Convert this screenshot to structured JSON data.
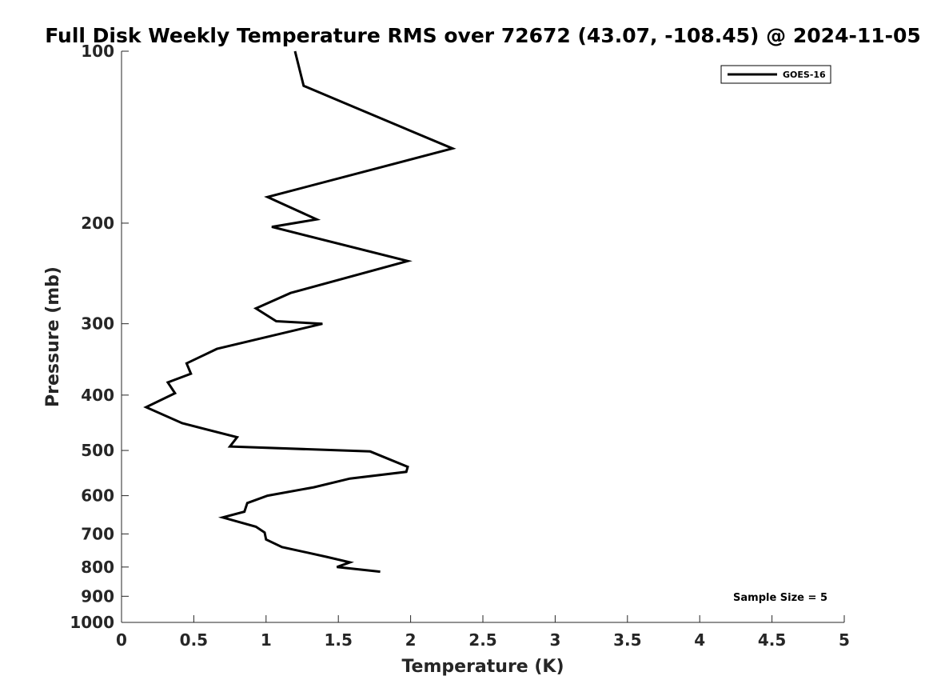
{
  "chart_data": {
    "type": "line",
    "title": "Full Disk Weekly Temperature RMS over 72672 (43.07, -108.45) @ 2024-11-05",
    "xlabel": "Temperature (K)",
    "ylabel": "Pressure (mb)",
    "xlim": [
      0,
      5
    ],
    "ylim": [
      100,
      1000
    ],
    "y_scale": "log",
    "y_reversed": true,
    "grid": false,
    "legend_position": "top-right",
    "x_ticks": [
      0,
      0.5,
      1,
      1.5,
      2,
      2.5,
      3,
      3.5,
      4,
      4.5,
      5
    ],
    "x_tick_labels": [
      "0",
      "0.5",
      "1",
      "1.5",
      "2",
      "2.5",
      "3",
      "3.5",
      "4",
      "4.5",
      "5"
    ],
    "y_ticks": [
      100,
      200,
      300,
      400,
      500,
      600,
      700,
      800,
      900,
      1000
    ],
    "y_tick_labels": [
      "100",
      "200",
      "300",
      "400",
      "500",
      "600",
      "700",
      "800",
      "900",
      "1000"
    ],
    "series": [
      {
        "name": "GOES-16",
        "color": "#000000",
        "x": [
          1.2,
          1.26,
          2.29,
          1.01,
          1.35,
          1.04,
          1.98,
          1.17,
          0.93,
          1.07,
          1.39,
          0.66,
          0.45,
          0.48,
          0.32,
          0.37,
          0.17,
          0.42,
          0.8,
          0.75,
          1.72,
          1.98,
          1.97,
          1.58,
          1.33,
          1.01,
          0.87,
          0.85,
          0.7,
          0.93,
          0.99,
          1.0,
          1.11,
          1.42,
          1.58,
          1.49,
          1.79
        ],
        "y": [
          100,
          115,
          148,
          180,
          197,
          203,
          233,
          265,
          282,
          297,
          300,
          332,
          352,
          367,
          380,
          397,
          420,
          448,
          474,
          492,
          502,
          534,
          545,
          560,
          580,
          600,
          618,
          640,
          655,
          680,
          696,
          716,
          738,
          768,
          785,
          800,
          815
        ]
      }
    ],
    "annotations": [
      {
        "text": "Sample Size = 5",
        "position": "bottom-right"
      }
    ]
  }
}
